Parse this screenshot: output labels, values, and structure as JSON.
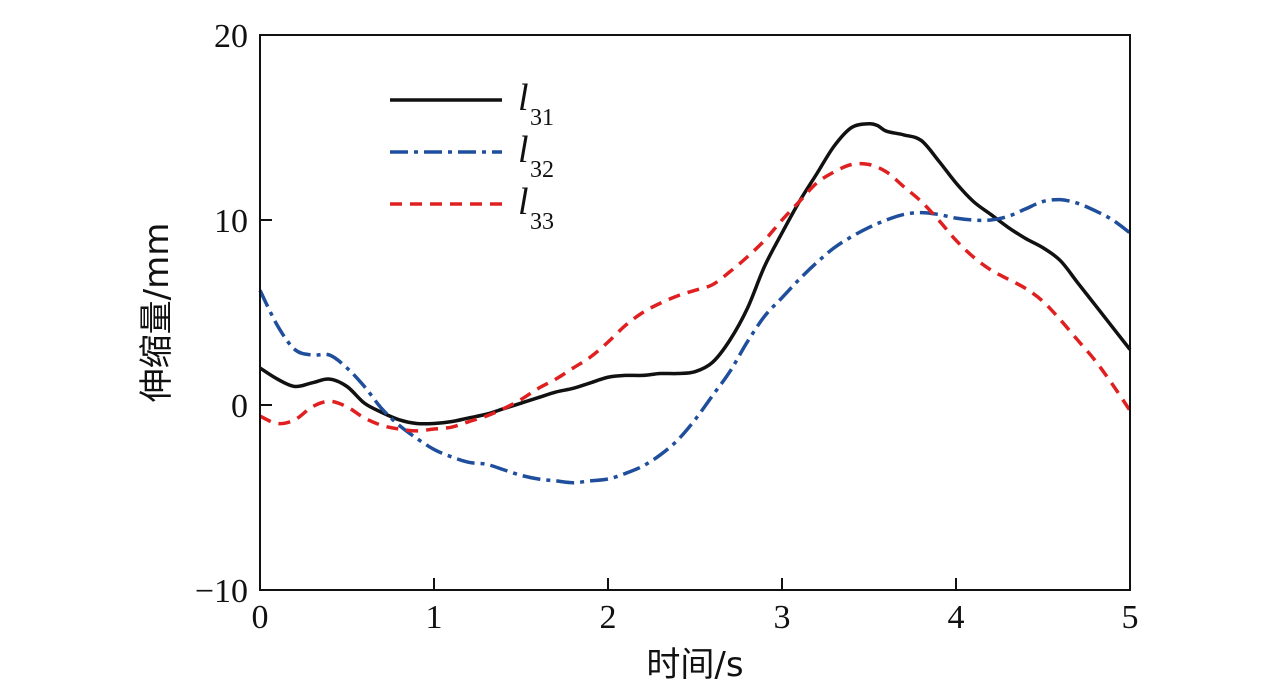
{
  "chart_data": {
    "type": "line",
    "title": "",
    "xlabel": "时间/s",
    "ylabel": "伸缩量/mm",
    "xlim": [
      0,
      5
    ],
    "ylim": [
      -10,
      20
    ],
    "xticks": [
      0,
      1,
      2,
      3,
      4,
      5
    ],
    "yticks": [
      -10,
      0,
      10,
      20
    ],
    "xtick_labels": [
      "0",
      "1",
      "2",
      "3",
      "4",
      "5"
    ],
    "ytick_labels": [
      "−10",
      "0",
      "10",
      "20"
    ],
    "grid": false,
    "legend_position": "top-left",
    "series": [
      {
        "name_base": "l",
        "name_sub": "31",
        "color": "#111111",
        "dash": "solid",
        "x": [
          0,
          0.1,
          0.2,
          0.3,
          0.4,
          0.5,
          0.6,
          0.7,
          0.8,
          0.9,
          1.0,
          1.1,
          1.2,
          1.3,
          1.4,
          1.5,
          1.6,
          1.7,
          1.8,
          1.9,
          2.0,
          2.1,
          2.2,
          2.3,
          2.4,
          2.5,
          2.6,
          2.7,
          2.8,
          2.9,
          3.0,
          3.1,
          3.2,
          3.3,
          3.4,
          3.5,
          3.55,
          3.6,
          3.7,
          3.8,
          3.9,
          4.0,
          4.1,
          4.2,
          4.3,
          4.4,
          4.5,
          4.6,
          4.7,
          4.8,
          4.9,
          5.0
        ],
        "y": [
          2.0,
          1.4,
          1.0,
          1.2,
          1.4,
          1.0,
          0.1,
          -0.4,
          -0.8,
          -1.0,
          -1.0,
          -0.9,
          -0.7,
          -0.5,
          -0.2,
          0.1,
          0.4,
          0.7,
          0.9,
          1.2,
          1.5,
          1.6,
          1.6,
          1.7,
          1.7,
          1.8,
          2.3,
          3.5,
          5.2,
          7.5,
          9.3,
          11.0,
          12.5,
          14.0,
          15.0,
          15.2,
          15.1,
          14.8,
          14.6,
          14.3,
          13.2,
          12.0,
          11.0,
          10.3,
          9.6,
          9.0,
          8.5,
          7.8,
          6.6,
          5.4,
          4.2,
          3.0
        ]
      },
      {
        "name_base": "l",
        "name_sub": "32",
        "color": "#1f4e9c",
        "dash": "dashdot",
        "x": [
          0,
          0.1,
          0.2,
          0.3,
          0.4,
          0.5,
          0.6,
          0.7,
          0.8,
          0.9,
          1.0,
          1.1,
          1.2,
          1.3,
          1.4,
          1.5,
          1.6,
          1.7,
          1.8,
          1.9,
          2.0,
          2.1,
          2.2,
          2.3,
          2.4,
          2.5,
          2.6,
          2.7,
          2.8,
          2.9,
          3.0,
          3.1,
          3.2,
          3.3,
          3.4,
          3.5,
          3.6,
          3.7,
          3.8,
          3.9,
          4.0,
          4.1,
          4.2,
          4.3,
          4.4,
          4.5,
          4.6,
          4.7,
          4.8,
          4.9,
          5.0
        ],
        "y": [
          6.2,
          4.3,
          3.0,
          2.7,
          2.7,
          2.0,
          1.0,
          -0.2,
          -1.1,
          -1.8,
          -2.4,
          -2.8,
          -3.1,
          -3.2,
          -3.5,
          -3.8,
          -4.0,
          -4.1,
          -4.2,
          -4.1,
          -4.0,
          -3.7,
          -3.3,
          -2.7,
          -1.9,
          -0.8,
          0.5,
          1.8,
          3.4,
          4.8,
          5.8,
          6.8,
          7.7,
          8.5,
          9.1,
          9.6,
          10.0,
          10.3,
          10.4,
          10.3,
          10.1,
          10.0,
          10.0,
          10.2,
          10.6,
          11.0,
          11.1,
          10.9,
          10.5,
          10.0,
          9.3
        ]
      },
      {
        "name_base": "l",
        "name_sub": "33",
        "color": "#e02020",
        "dash": "dashed",
        "x": [
          0,
          0.1,
          0.2,
          0.3,
          0.4,
          0.5,
          0.6,
          0.7,
          0.8,
          0.9,
          1.0,
          1.1,
          1.2,
          1.3,
          1.4,
          1.5,
          1.6,
          1.7,
          1.8,
          1.9,
          2.0,
          2.1,
          2.2,
          2.3,
          2.4,
          2.5,
          2.6,
          2.7,
          2.8,
          2.9,
          3.0,
          3.1,
          3.2,
          3.3,
          3.4,
          3.5,
          3.6,
          3.7,
          3.8,
          3.9,
          4.0,
          4.1,
          4.2,
          4.3,
          4.4,
          4.5,
          4.6,
          4.7,
          4.8,
          4.9,
          5.0
        ],
        "y": [
          -0.6,
          -1.0,
          -0.8,
          -0.1,
          0.2,
          -0.1,
          -0.7,
          -1.1,
          -1.3,
          -1.4,
          -1.3,
          -1.2,
          -0.9,
          -0.6,
          -0.2,
          0.3,
          0.9,
          1.4,
          2.0,
          2.6,
          3.4,
          4.3,
          5.0,
          5.5,
          5.9,
          6.2,
          6.5,
          7.2,
          8.0,
          8.9,
          10.0,
          11.0,
          12.0,
          12.6,
          13.0,
          13.0,
          12.6,
          11.8,
          11.0,
          10.0,
          8.9,
          8.0,
          7.3,
          6.8,
          6.3,
          5.6,
          4.6,
          3.5,
          2.4,
          1.1,
          -0.3
        ]
      }
    ]
  }
}
